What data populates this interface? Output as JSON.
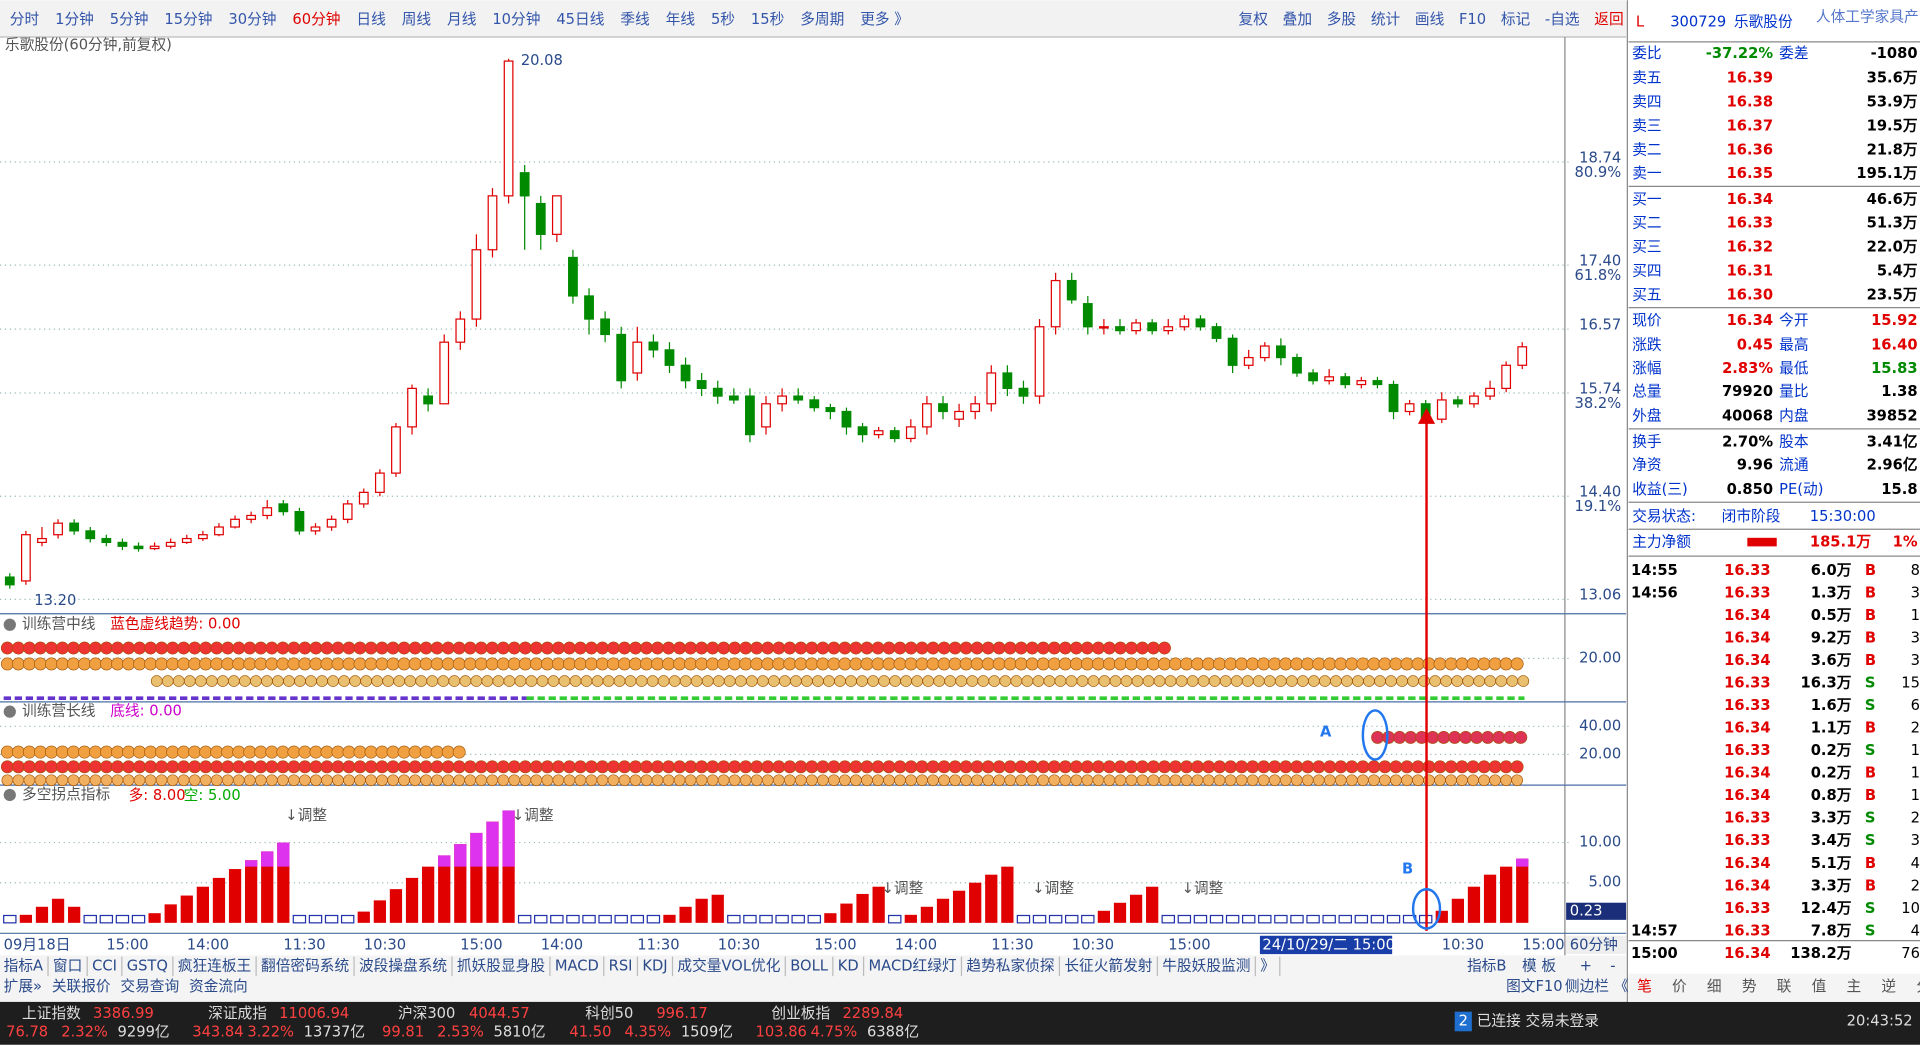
{
  "toolbar": {
    "periods": [
      "分时",
      "1分钟",
      "5分钟",
      "15分钟",
      "30分钟",
      "60分钟",
      "日线",
      "周线",
      "月线",
      "10分钟",
      "45日线",
      "季线",
      "年线",
      "5秒",
      "15秒",
      "多周期",
      "更多 》"
    ],
    "active": 5,
    "tools": [
      "复权",
      "叠加",
      "多股",
      "统计",
      "画线",
      "F10",
      "标记",
      "-自选",
      "返回"
    ]
  },
  "chart": {
    "title": "乐歌股份(60分钟,前复权)",
    "max_label": "20.08",
    "min_label": "13.20",
    "ylim": [
      12.89,
      20.14
    ],
    "yticks": [
      {
        "value": 18.74,
        "label": "18.74",
        "pct": "80.9%"
      },
      {
        "value": 17.4,
        "label": "17.40",
        "pct": "61.8%"
      },
      {
        "value": 16.57,
        "label": "16.57",
        "pct": null
      },
      {
        "value": 15.74,
        "label": "15.74",
        "pct": "38.2%"
      },
      {
        "value": 14.4,
        "label": "14.40",
        "pct": "19.1%"
      },
      {
        "value": 13.06,
        "label": "13.06",
        "pct": null
      }
    ],
    "candles": [
      [
        13.35,
        13.25,
        13.4,
        13.2
      ],
      [
        13.3,
        13.9,
        13.95,
        13.25
      ],
      [
        13.8,
        13.85,
        14.0,
        13.75
      ],
      [
        13.9,
        14.05,
        14.1,
        13.85
      ],
      [
        14.05,
        13.95,
        14.1,
        13.9
      ],
      [
        13.95,
        13.85,
        14.0,
        13.8
      ],
      [
        13.85,
        13.8,
        13.9,
        13.75
      ],
      [
        13.8,
        13.75,
        13.85,
        13.7
      ],
      [
        13.75,
        13.72,
        13.8,
        13.68
      ],
      [
        13.72,
        13.75,
        13.8,
        13.7
      ],
      [
        13.75,
        13.8,
        13.85,
        13.72
      ],
      [
        13.8,
        13.85,
        13.9,
        13.78
      ],
      [
        13.85,
        13.9,
        13.95,
        13.82
      ],
      [
        13.9,
        14.0,
        14.05,
        13.88
      ],
      [
        14.0,
        14.1,
        14.15,
        13.98
      ],
      [
        14.1,
        14.15,
        14.2,
        14.05
      ],
      [
        14.15,
        14.25,
        14.35,
        14.1
      ],
      [
        14.3,
        14.2,
        14.35,
        14.15
      ],
      [
        14.2,
        13.95,
        14.25,
        13.9
      ],
      [
        13.95,
        14.0,
        14.05,
        13.9
      ],
      [
        14.0,
        14.1,
        14.15,
        13.95
      ],
      [
        14.1,
        14.3,
        14.35,
        14.05
      ],
      [
        14.3,
        14.45,
        14.5,
        14.25
      ],
      [
        14.45,
        14.7,
        14.75,
        14.4
      ],
      [
        14.7,
        15.3,
        15.35,
        14.65
      ],
      [
        15.3,
        15.8,
        15.85,
        15.2
      ],
      [
        15.7,
        15.6,
        15.8,
        15.5
      ],
      [
        15.6,
        16.4,
        16.5,
        15.6
      ],
      [
        16.4,
        16.7,
        16.8,
        16.3
      ],
      [
        16.7,
        17.6,
        17.8,
        16.6
      ],
      [
        17.6,
        18.3,
        18.4,
        17.5
      ],
      [
        18.3,
        20.05,
        20.08,
        18.2
      ],
      [
        18.6,
        18.3,
        18.7,
        17.6
      ],
      [
        18.2,
        17.8,
        18.3,
        17.6
      ],
      [
        17.8,
        18.3,
        18.3,
        17.7
      ],
      [
        17.5,
        17.0,
        17.6,
        16.9
      ],
      [
        17.0,
        16.7,
        17.1,
        16.5
      ],
      [
        16.7,
        16.5,
        16.8,
        16.4
      ],
      [
        16.5,
        15.9,
        16.6,
        15.8
      ],
      [
        16.0,
        16.4,
        16.6,
        15.9
      ],
      [
        16.4,
        16.3,
        16.5,
        16.2
      ],
      [
        16.3,
        16.1,
        16.4,
        16.0
      ],
      [
        16.1,
        15.9,
        16.2,
        15.8
      ],
      [
        15.9,
        15.8,
        16.0,
        15.7
      ],
      [
        15.8,
        15.7,
        15.9,
        15.6
      ],
      [
        15.7,
        15.65,
        15.8,
        15.6
      ],
      [
        15.7,
        15.2,
        15.8,
        15.1
      ],
      [
        15.3,
        15.6,
        15.7,
        15.2
      ],
      [
        15.6,
        15.7,
        15.8,
        15.5
      ],
      [
        15.7,
        15.65,
        15.8,
        15.6
      ],
      [
        15.65,
        15.55,
        15.7,
        15.5
      ],
      [
        15.55,
        15.5,
        15.6,
        15.4
      ],
      [
        15.5,
        15.3,
        15.55,
        15.2
      ],
      [
        15.3,
        15.2,
        15.35,
        15.1
      ],
      [
        15.2,
        15.25,
        15.3,
        15.15
      ],
      [
        15.25,
        15.15,
        15.3,
        15.1
      ],
      [
        15.15,
        15.3,
        15.4,
        15.1
      ],
      [
        15.3,
        15.6,
        15.7,
        15.2
      ],
      [
        15.6,
        15.5,
        15.7,
        15.4
      ],
      [
        15.4,
        15.5,
        15.6,
        15.3
      ],
      [
        15.5,
        15.6,
        15.7,
        15.4
      ],
      [
        15.6,
        16.0,
        16.1,
        15.5
      ],
      [
        16.0,
        15.8,
        16.1,
        15.7
      ],
      [
        15.8,
        15.7,
        15.9,
        15.6
      ],
      [
        15.7,
        16.6,
        16.7,
        15.6
      ],
      [
        16.6,
        17.2,
        17.3,
        16.5
      ],
      [
        17.2,
        16.95,
        17.3,
        16.9
      ],
      [
        16.9,
        16.6,
        17.0,
        16.5
      ],
      [
        16.6,
        16.6,
        16.7,
        16.5
      ],
      [
        16.6,
        16.55,
        16.7,
        16.5
      ],
      [
        16.55,
        16.65,
        16.7,
        16.5
      ],
      [
        16.65,
        16.55,
        16.7,
        16.5
      ],
      [
        16.55,
        16.6,
        16.7,
        16.5
      ],
      [
        16.6,
        16.7,
        16.75,
        16.55
      ],
      [
        16.7,
        16.6,
        16.75,
        16.55
      ],
      [
        16.6,
        16.45,
        16.65,
        16.4
      ],
      [
        16.45,
        16.1,
        16.5,
        16.0
      ],
      [
        16.1,
        16.2,
        16.3,
        16.05
      ],
      [
        16.2,
        16.35,
        16.4,
        16.15
      ],
      [
        16.35,
        16.2,
        16.45,
        16.1
      ],
      [
        16.2,
        16.0,
        16.25,
        15.95
      ],
      [
        16.0,
        15.9,
        16.05,
        15.85
      ],
      [
        15.9,
        15.95,
        16.05,
        15.85
      ],
      [
        15.95,
        15.85,
        16.0,
        15.8
      ],
      [
        15.85,
        15.9,
        15.95,
        15.8
      ],
      [
        15.9,
        15.85,
        15.95,
        15.8
      ],
      [
        15.85,
        15.5,
        15.9,
        15.4
      ],
      [
        15.5,
        15.6,
        15.65,
        15.45
      ],
      [
        15.6,
        15.4,
        15.65,
        15.35
      ],
      [
        15.4,
        15.65,
        15.75,
        15.35
      ],
      [
        15.65,
        15.6,
        15.7,
        15.55
      ],
      [
        15.6,
        15.7,
        15.75,
        15.55
      ],
      [
        15.7,
        15.8,
        15.9,
        15.65
      ],
      [
        15.8,
        16.1,
        16.15,
        15.75
      ],
      [
        16.1,
        16.34,
        16.4,
        16.05
      ]
    ],
    "times": [
      "09月18日",
      null,
      null,
      null,
      null,
      null,
      "15:00",
      null,
      null,
      null,
      null,
      "14:00",
      null,
      null,
      null,
      null,
      null,
      "11:30",
      null,
      null,
      null,
      null,
      "10:30",
      null,
      null,
      null,
      null,
      null,
      "15:00",
      null,
      null,
      null,
      null,
      "14:00",
      null,
      null,
      null,
      null,
      null,
      "11:30",
      null,
      null,
      null,
      null,
      "10:30",
      null,
      null,
      null,
      null,
      null,
      "15:00",
      null,
      null,
      null,
      null,
      "14:00",
      null,
      null,
      null,
      null,
      null,
      "11:30",
      null,
      null,
      null,
      null,
      "10:30",
      null,
      null,
      null,
      null,
      null,
      "15:00",
      null,
      null,
      null,
      null,
      null,
      "24/10/29/二 15:00",
      null,
      null,
      null,
      null,
      null,
      null,
      null,
      null,
      null,
      null,
      "10:30",
      null,
      null,
      null,
      null,
      "15:00"
    ],
    "highlighted_time": 78,
    "period_label": "60分钟"
  },
  "panels": [
    {
      "name": "训练营中线",
      "label": "蓝色虚线趋势: 0.00",
      "ylim": [
        0,
        40
      ],
      "yticks": [
        {
          "value": 20,
          "label": "20.00"
        }
      ]
    },
    {
      "name": "训练营长线",
      "label": "底线: 0.00",
      "annotation": "A",
      "ylim": [
        -1,
        56.5
      ],
      "yticks": [
        {
          "value": 40,
          "label": "40.00"
        },
        {
          "value": 20,
          "label": "20.00"
        }
      ]
    },
    {
      "name": "多空拐点指标",
      "labels": [
        "多: 8.00",
        "空: 5.00"
      ],
      "annotation": "B",
      "current": "0.23",
      "ylim": [
        -1,
        17
      ],
      "yticks": [
        {
          "value": 10,
          "label": "10.00"
        },
        {
          "value": 5,
          "label": "5.00"
        }
      ],
      "notes": [
        "↓调整",
        "↓调整",
        "↓调整",
        "↓调整",
        "↓调整"
      ],
      "values": [
        0,
        1,
        2,
        3,
        2,
        0,
        0,
        0,
        0,
        1.2,
        2.3,
        3.4,
        4.5,
        5.6,
        6.7,
        7.8,
        8.9,
        10,
        0,
        0,
        0,
        0,
        1.4,
        2.8,
        4.2,
        5.6,
        7,
        8.4,
        9.8,
        11.2,
        12.6,
        14,
        0,
        0,
        0,
        0,
        0,
        0,
        0,
        0,
        0,
        1,
        2,
        3,
        3.5,
        0,
        0,
        0,
        0,
        0,
        0,
        1.2,
        2.4,
        3.6,
        4.5,
        0,
        1,
        2,
        3,
        4,
        5,
        6,
        7,
        0,
        0,
        0,
        0,
        0,
        1.5,
        2.5,
        3.5,
        4.5,
        0,
        0,
        0,
        0,
        0,
        0,
        0,
        0,
        0,
        0,
        0,
        0,
        0,
        0,
        0,
        0,
        0,
        1.5,
        3,
        4.5,
        6,
        7,
        8
      ]
    }
  ],
  "tabs": {
    "row1": [
      "指标A",
      "窗口",
      "CCI",
      "GSTQ",
      "疯狂连板王",
      "翻倍密码系统",
      "波段操盘系统",
      "抓妖股显身股",
      "MACD",
      "RSI",
      "KDJ",
      "成交量VOL优化",
      "BOLL",
      "KD",
      "MACD红绿灯",
      "趋势私家侦探",
      "长征火箭发射",
      "牛股妖股监测",
      "》"
    ],
    "row1_right": [
      "指标B",
      "模 板"
    ],
    "row2": [
      "扩展»",
      "关联报价",
      "交易查询",
      "资金流向"
    ],
    "row2_right": [
      "图文F10",
      "侧边栏",
      "《"
    ],
    "zoom": [
      "+",
      "-"
    ]
  },
  "quote": {
    "flag": "L",
    "code": "300729",
    "name": "乐歌股份",
    "industry": "人体工学家具产",
    "weibi": [
      "委比",
      "-37.22%",
      "委差",
      "-1080"
    ],
    "sells": [
      [
        "卖五",
        "16.39",
        "35.6万"
      ],
      [
        "卖四",
        "16.38",
        "53.9万"
      ],
      [
        "卖三",
        "16.37",
        "19.5万"
      ],
      [
        "卖二",
        "16.36",
        "21.8万"
      ],
      [
        "卖一",
        "16.35",
        "195.1万"
      ]
    ],
    "buys": [
      [
        "买一",
        "16.34",
        "46.6万"
      ],
      [
        "买二",
        "16.33",
        "51.3万"
      ],
      [
        "买三",
        "16.32",
        "22.0万"
      ],
      [
        "买四",
        "16.31",
        "5.4万"
      ],
      [
        "买五",
        "16.30",
        "23.5万"
      ]
    ],
    "stats": [
      [
        "现价",
        "16.34",
        "今开",
        "15.92"
      ],
      [
        "涨跌",
        "0.45",
        "最高",
        "16.40"
      ],
      [
        "涨幅",
        "2.83%",
        "最低",
        "15.83"
      ],
      [
        "总量",
        "79920",
        "量比",
        "1.38"
      ],
      [
        "外盘",
        "40068",
        "内盘",
        "39852"
      ],
      [
        "换手",
        "2.70%",
        "股本",
        "3.41亿"
      ],
      [
        "净资",
        "9.96",
        "流通",
        "2.96亿"
      ],
      [
        "收益(三)",
        "0.850",
        "PE(动)",
        "15.8"
      ]
    ],
    "status": [
      "交易状态:",
      "闭市阶段",
      "15:30:00"
    ],
    "main_net": [
      "主力净额",
      "185.1万",
      "1%"
    ],
    "ticks": [
      [
        "14:55",
        "16.33",
        "6.0万",
        "B",
        "8"
      ],
      [
        "14:56",
        "16.33",
        "1.3万",
        "B",
        "3"
      ],
      [
        null,
        "16.34",
        "0.5万",
        "B",
        "1"
      ],
      [
        null,
        "16.34",
        "9.2万",
        "B",
        "3"
      ],
      [
        null,
        "16.34",
        "3.6万",
        "B",
        "3"
      ],
      [
        null,
        "16.33",
        "16.3万",
        "S",
        "15"
      ],
      [
        null,
        "16.33",
        "1.6万",
        "S",
        "6"
      ],
      [
        null,
        "16.34",
        "1.1万",
        "B",
        "2"
      ],
      [
        null,
        "16.33",
        "0.2万",
        "S",
        "1"
      ],
      [
        null,
        "16.34",
        "0.2万",
        "B",
        "1"
      ],
      [
        null,
        "16.34",
        "0.8万",
        "B",
        "1"
      ],
      [
        null,
        "16.33",
        "3.3万",
        "S",
        "2"
      ],
      [
        null,
        "16.33",
        "3.4万",
        "S",
        "3"
      ],
      [
        null,
        "16.34",
        "5.1万",
        "B",
        "4"
      ],
      [
        null,
        "16.34",
        "3.3万",
        "B",
        "2"
      ],
      [
        null,
        "16.33",
        "12.4万",
        "S",
        "10"
      ],
      [
        "14:57",
        "16.33",
        "7.8万",
        "S",
        "4"
      ],
      [
        "15:00",
        "16.34",
        "138.2万",
        null,
        "76"
      ]
    ],
    "tabs": [
      "笔",
      "价",
      "细",
      "势",
      "联",
      "值",
      "主",
      "逆",
      "分"
    ]
  },
  "status_bar": {
    "indices": [
      {
        "name": "上证指数",
        "value": "3386.99",
        "change": "76.78",
        "pct": "2.32%",
        "amount": "9299亿"
      },
      {
        "name": "深证成指",
        "value": "11006.94",
        "change": "343.84",
        "pct": "3.22%",
        "amount": "13737亿"
      },
      {
        "name": "沪深300",
        "value": "4044.57",
        "change": "99.81",
        "pct": "2.53%",
        "amount": "5810亿"
      },
      {
        "name": "科创50",
        "value": "996.17",
        "change": "41.50",
        "pct": "4.35%",
        "amount": "1509亿"
      },
      {
        "name": "创业板指",
        "value": "2289.84",
        "change": "103.86",
        "pct": "4.75%",
        "amount": "6388亿"
      }
    ],
    "badge": "2",
    "connection": "已连接 交易未登录",
    "clock": "20:43:52"
  }
}
